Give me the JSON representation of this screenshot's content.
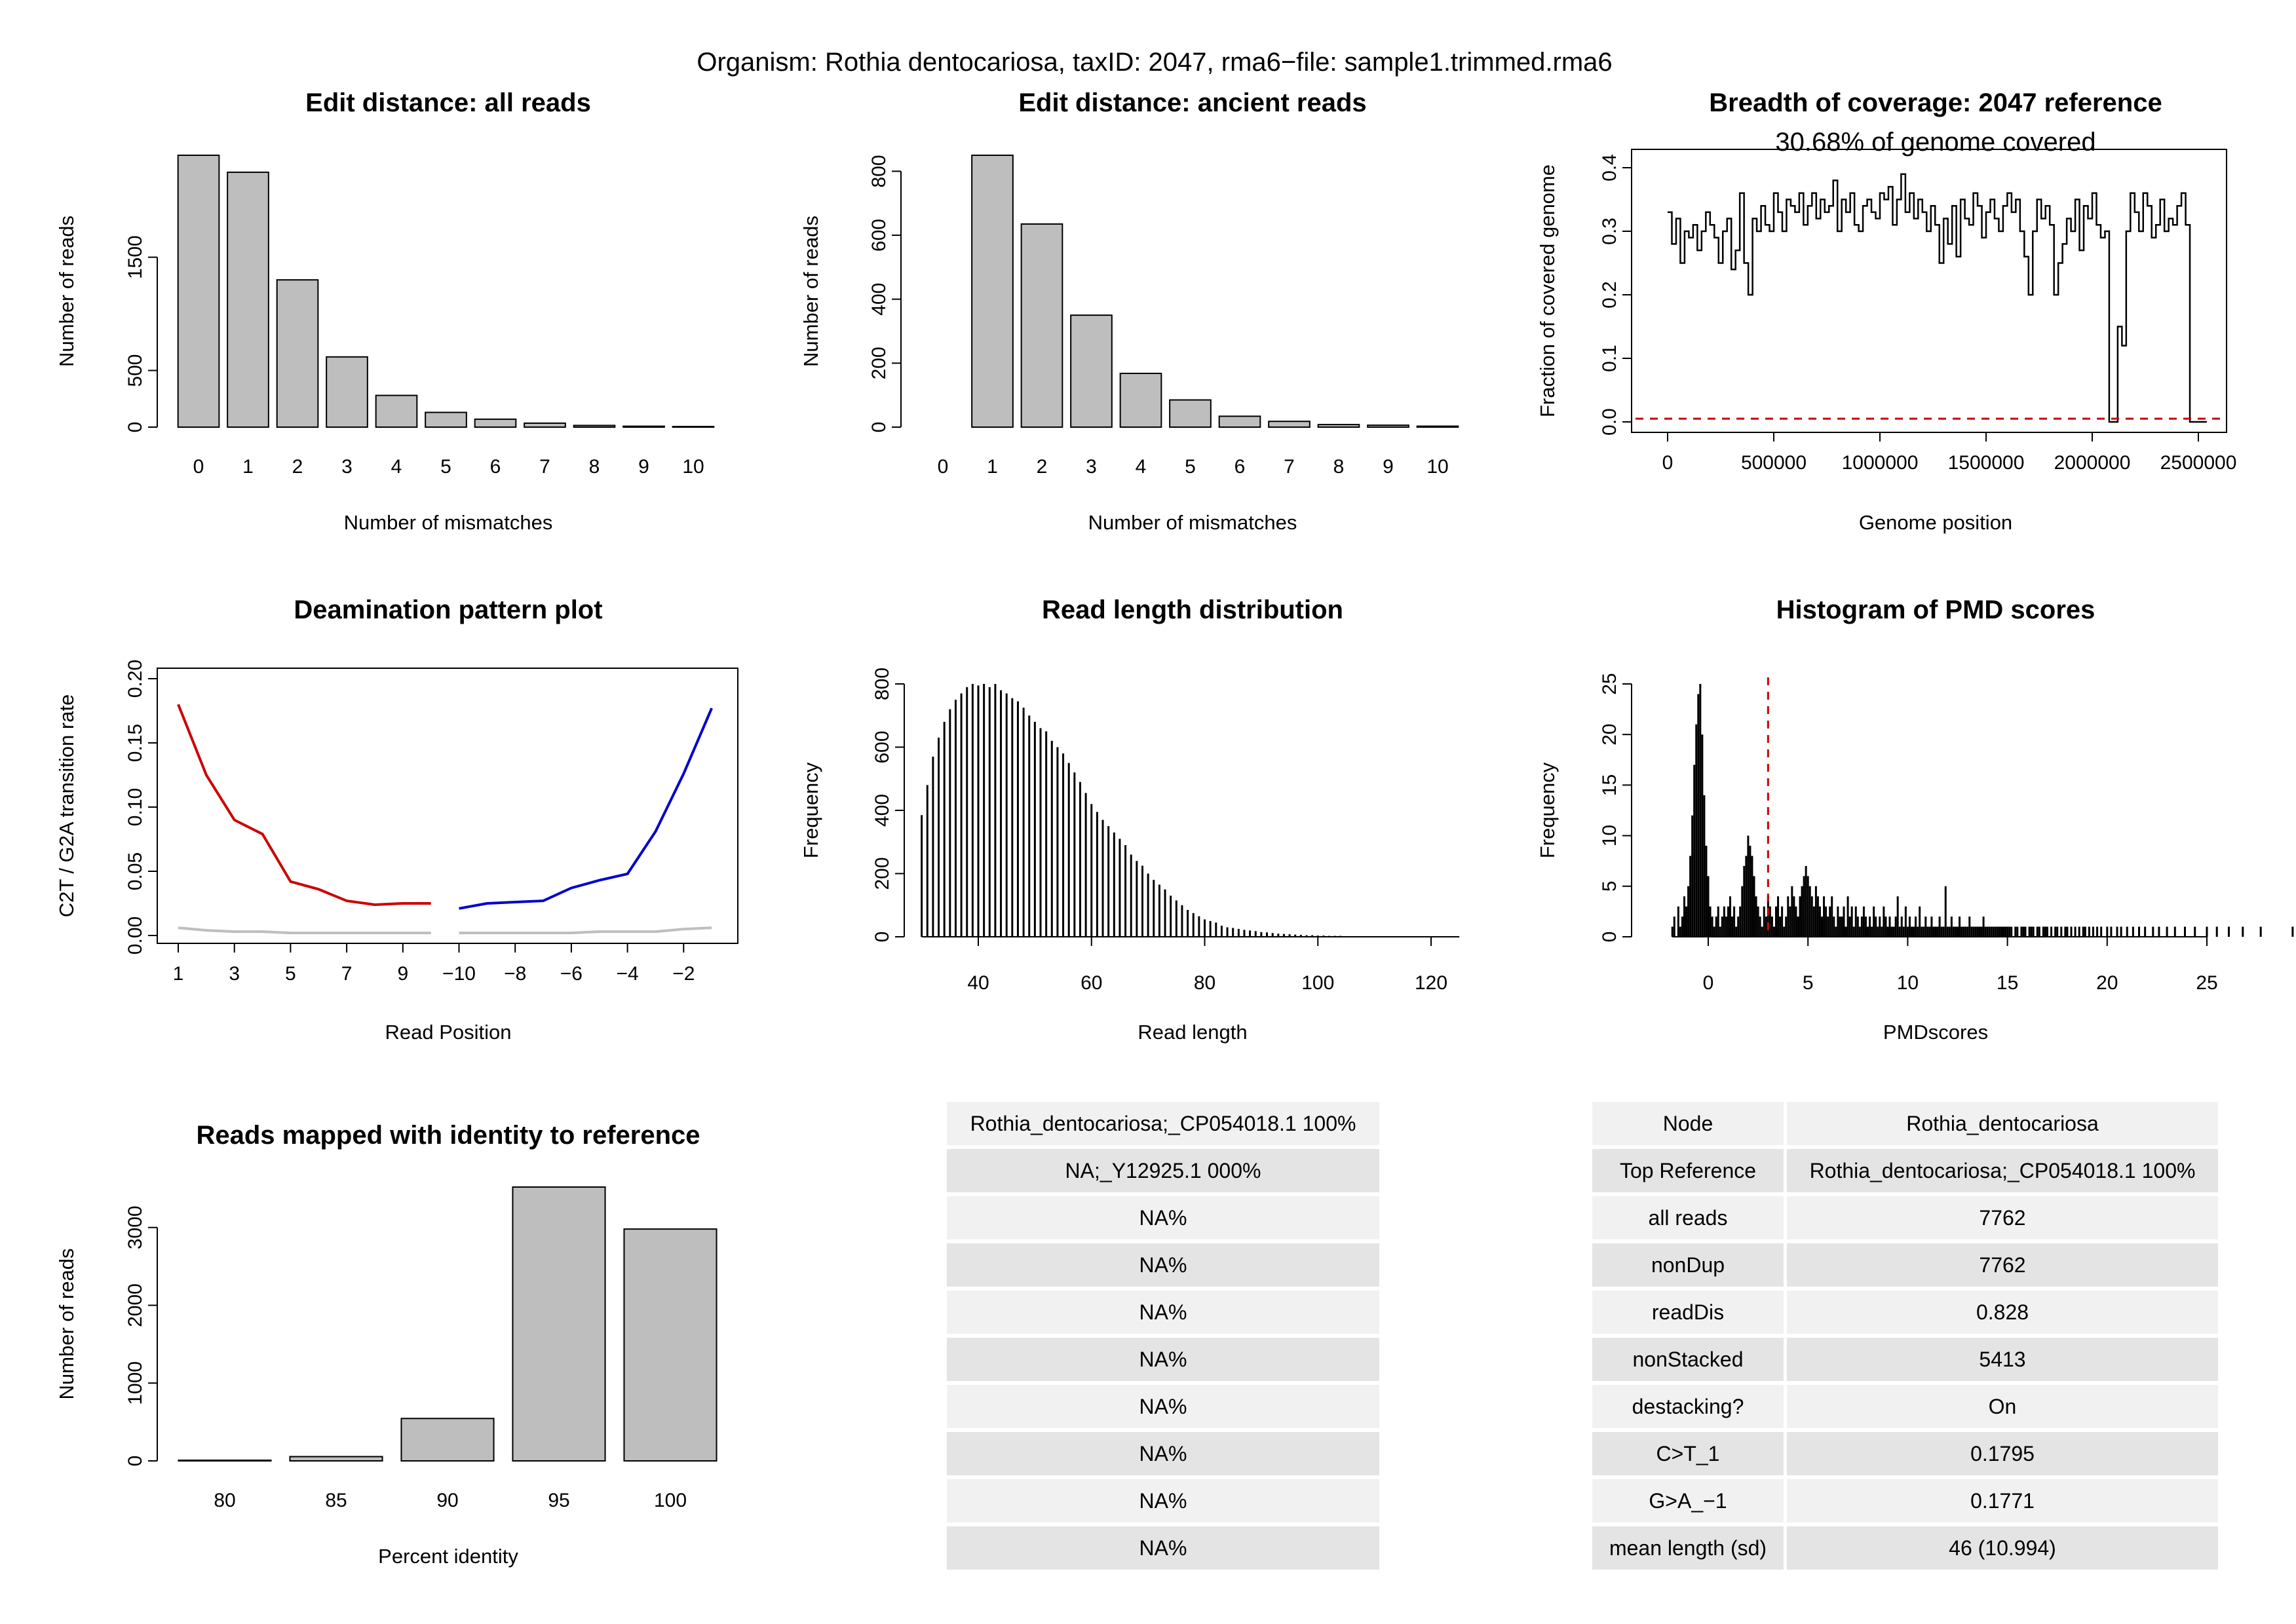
{
  "page_title": "Organism: Rothia dentocariosa, taxID: 2047, rma6−file: sample1.trimmed.rma6",
  "colors": {
    "bar_fill": "#bebebe",
    "red": "#cc0000",
    "blue": "#0000cc",
    "gray": "#bebebe",
    "dashed_red": "#cc0000"
  },
  "chart_data": [
    {
      "id": "edit-all",
      "type": "bar",
      "title": "Edit distance: all reads",
      "xlabel": "Number of mismatches",
      "ylabel": "Number of reads",
      "categories": [
        "0",
        "1",
        "2",
        "3",
        "4",
        "5",
        "6",
        "7",
        "8",
        "9",
        "10"
      ],
      "values": [
        2400,
        2250,
        1300,
        620,
        280,
        130,
        70,
        35,
        15,
        8,
        5
      ],
      "yticks": [
        0,
        500,
        1500
      ],
      "ylim": [
        0,
        2400
      ]
    },
    {
      "id": "edit-ancient",
      "type": "bar",
      "title": "Edit distance: ancient reads",
      "xlabel": "Number of mismatches",
      "ylabel": "Number of reads",
      "categories": [
        "0",
        "1",
        "2",
        "3",
        "4",
        "5",
        "6",
        "7",
        "8",
        "9",
        "10"
      ],
      "values": [
        0,
        850,
        635,
        350,
        168,
        85,
        34,
        18,
        8,
        6,
        3
      ],
      "yticks": [
        0,
        200,
        400,
        600,
        800
      ],
      "ylim": [
        0,
        850
      ]
    },
    {
      "id": "coverage",
      "type": "line",
      "title": "Breadth of coverage: 2047 reference",
      "subtitle": "30.68% of genome covered",
      "xlabel": "Genome position",
      "ylabel": "Fraction of covered genome",
      "xticks": [
        0,
        500000,
        1000000,
        1500000,
        2000000,
        2500000
      ],
      "xtick_labels": [
        "0",
        "500000",
        "1000000",
        "1500000",
        "2000000",
        "2500000"
      ],
      "yticks": [
        0.0,
        0.1,
        0.2,
        0.3,
        0.4
      ],
      "ytick_labels": [
        "0.0",
        "0.1",
        "0.2",
        "0.3",
        "0.4"
      ],
      "xlim": [
        0,
        2550000
      ],
      "ylim": [
        0,
        0.4
      ],
      "bin_width": 20000,
      "values": [
        0.33,
        0.28,
        0.32,
        0.25,
        0.3,
        0.29,
        0.31,
        0.27,
        0.3,
        0.33,
        0.31,
        0.29,
        0.25,
        0.3,
        0.32,
        0.24,
        0.27,
        0.36,
        0.25,
        0.2,
        0.32,
        0.3,
        0.34,
        0.31,
        0.3,
        0.36,
        0.33,
        0.3,
        0.35,
        0.34,
        0.33,
        0.36,
        0.31,
        0.34,
        0.36,
        0.32,
        0.35,
        0.33,
        0.34,
        0.38,
        0.3,
        0.35,
        0.33,
        0.36,
        0.31,
        0.3,
        0.34,
        0.35,
        0.33,
        0.32,
        0.36,
        0.35,
        0.37,
        0.31,
        0.35,
        0.39,
        0.33,
        0.36,
        0.32,
        0.35,
        0.33,
        0.3,
        0.34,
        0.31,
        0.25,
        0.32,
        0.28,
        0.34,
        0.26,
        0.35,
        0.32,
        0.31,
        0.36,
        0.34,
        0.29,
        0.33,
        0.35,
        0.32,
        0.3,
        0.34,
        0.36,
        0.33,
        0.35,
        0.3,
        0.26,
        0.2,
        0.3,
        0.35,
        0.32,
        0.34,
        0.31,
        0.2,
        0.25,
        0.28,
        0.32,
        0.3,
        0.35,
        0.27,
        0.34,
        0.32,
        0.36,
        0.31,
        0.29,
        0.3,
        0.0,
        0.0,
        0.15,
        0.12,
        0.3,
        0.36,
        0.33,
        0.3,
        0.36,
        0.34,
        0.29,
        0.31,
        0.35,
        0.3,
        0.32,
        0.31,
        0.34,
        0.36,
        0.31,
        0.0,
        0.0,
        0.0,
        0.0
      ],
      "threshold": 0.005
    },
    {
      "id": "deamination",
      "type": "line",
      "title": "Deamination pattern plot",
      "xlabel": "Read Position",
      "ylabel": "C2T / G2A transition rate",
      "xtick_labels": [
        "1",
        "3",
        "5",
        "7",
        "9",
        "−10",
        "−8",
        "−6",
        "−4",
        "−2"
      ],
      "yticks": [
        0.0,
        0.05,
        0.1,
        0.15,
        0.2
      ],
      "ytick_labels": [
        "0.00",
        "0.05",
        "0.10",
        "0.15",
        "0.20"
      ],
      "ylim": [
        0,
        0.2
      ],
      "series": [
        {
          "color": "#cc0000",
          "x": [
            1,
            2,
            3,
            4,
            5,
            6,
            7,
            8,
            9,
            10
          ],
          "y": [
            0.18,
            0.125,
            0.09,
            0.079,
            0.042,
            0.036,
            0.027,
            0.024,
            0.025,
            0.025
          ]
        },
        {
          "color": "#0000cc",
          "x": [
            11,
            12,
            13,
            14,
            15,
            16,
            17,
            18,
            19,
            20
          ],
          "y": [
            0.021,
            0.025,
            0.026,
            0.027,
            0.037,
            0.043,
            0.048,
            0.081,
            0.126,
            0.177
          ]
        },
        {
          "color": "#bebebe",
          "x": [
            1,
            2,
            3,
            4,
            5,
            6,
            7,
            8,
            9,
            10
          ],
          "y": [
            0.006,
            0.004,
            0.003,
            0.003,
            0.002,
            0.002,
            0.002,
            0.002,
            0.002,
            0.002
          ]
        },
        {
          "color": "#bebebe",
          "x": [
            11,
            12,
            13,
            14,
            15,
            16,
            17,
            18,
            19,
            20
          ],
          "y": [
            0.002,
            0.002,
            0.002,
            0.002,
            0.002,
            0.003,
            0.003,
            0.003,
            0.005,
            0.006
          ]
        }
      ]
    },
    {
      "id": "read-length",
      "type": "bar",
      "title": "Read length distribution",
      "xlabel": "Read length",
      "ylabel": "Frequency",
      "xticks": [
        40,
        60,
        80,
        100,
        120
      ],
      "xlim": [
        29.5,
        125
      ],
      "yticks": [
        0,
        200,
        400,
        600,
        800
      ],
      "ylim": [
        0,
        800
      ],
      "x_start": 30,
      "values": [
        385,
        480,
        570,
        630,
        680,
        720,
        750,
        770,
        790,
        800,
        795,
        800,
        790,
        800,
        780,
        770,
        755,
        745,
        725,
        700,
        680,
        660,
        650,
        620,
        600,
        580,
        550,
        520,
        490,
        455,
        420,
        395,
        370,
        350,
        330,
        310,
        290,
        260,
        240,
        225,
        200,
        180,
        165,
        150,
        130,
        115,
        100,
        85,
        75,
        65,
        55,
        50,
        45,
        35,
        30,
        28,
        25,
        22,
        20,
        18,
        15,
        14,
        12,
        10,
        9,
        8,
        7,
        6,
        5,
        5,
        4,
        4,
        3,
        3,
        3,
        2,
        2,
        2,
        2,
        1,
        1,
        1,
        1,
        1,
        1,
        1,
        1,
        1,
        1,
        1,
        1,
        1,
        1,
        1,
        1
      ]
    },
    {
      "id": "pmd",
      "type": "bar",
      "title": "Histogram of PMD scores",
      "xlabel": "PMDscores",
      "ylabel": "Frequency",
      "xticks": [
        0,
        5,
        10,
        15,
        20,
        25
      ],
      "xlim": [
        -1.8,
        25
      ],
      "yticks": [
        0,
        5,
        10,
        15,
        20,
        25
      ],
      "ylim": [
        0,
        25
      ],
      "threshold": 3,
      "x_start": -1.8,
      "bin_width": 0.1,
      "values": [
        1,
        2,
        0,
        3,
        1,
        2,
        4,
        3,
        5,
        8,
        12,
        17,
        21,
        24,
        25,
        20,
        14,
        9,
        6,
        3,
        2,
        1,
        2,
        3,
        1,
        2,
        3,
        2,
        3,
        4,
        2,
        3,
        1,
        2,
        3,
        5,
        7,
        8,
        10,
        9,
        8,
        6,
        4,
        3,
        2,
        1,
        3,
        2,
        4,
        3,
        2,
        1,
        3,
        4,
        2,
        3,
        1,
        2,
        4,
        3,
        5,
        4,
        3,
        2,
        4,
        5,
        6,
        7,
        6,
        5,
        4,
        3,
        5,
        4,
        3,
        2,
        4,
        3,
        2,
        3,
        4,
        2,
        1,
        3,
        2,
        2,
        3,
        1,
        4,
        2,
        3,
        1,
        3,
        2,
        1,
        2,
        3,
        2,
        1,
        2,
        1,
        3,
        2,
        1,
        2,
        1,
        3,
        2,
        1,
        2,
        1,
        1,
        2,
        4,
        1,
        2,
        1,
        3,
        1,
        2,
        1,
        1,
        2,
        1,
        3,
        1,
        1,
        2,
        1,
        1,
        2,
        1,
        1,
        1,
        2,
        1,
        1,
        5,
        1,
        1,
        2,
        1,
        1,
        1,
        2,
        1,
        1,
        1,
        1,
        2,
        1,
        1,
        1,
        1,
        1,
        1,
        2,
        1,
        1,
        1,
        1,
        1,
        1,
        1,
        1,
        1,
        1,
        1,
        1,
        1,
        1,
        0,
        1,
        1,
        0,
        1,
        1,
        1,
        0,
        1,
        1,
        1,
        0,
        1,
        1,
        0,
        1,
        1,
        1,
        0,
        1,
        0,
        1,
        1,
        0,
        1,
        0,
        1,
        1,
        0,
        1,
        0,
        1,
        0,
        1,
        0,
        1,
        1,
        0,
        1,
        0,
        1,
        0,
        1,
        0,
        1,
        0,
        0,
        1,
        0,
        1,
        0,
        0,
        1,
        0,
        1,
        0,
        0,
        1,
        0,
        0,
        1,
        0,
        0,
        1,
        0,
        0,
        1,
        0,
        0,
        0,
        1,
        0,
        0,
        1,
        0,
        0,
        0,
        1,
        0,
        0,
        0,
        1,
        0,
        0,
        0,
        0,
        1,
        0,
        0,
        0,
        0,
        1,
        0,
        0,
        0,
        0,
        0,
        1,
        0,
        0,
        0,
        0,
        1,
        0,
        0,
        0,
        0,
        0,
        1,
        0,
        0,
        0,
        0,
        0,
        0,
        1,
        0,
        0,
        0,
        0,
        0,
        0,
        0,
        0,
        1,
        0,
        0,
        0,
        0,
        0,
        0,
        0,
        0,
        0,
        0,
        0,
        0,
        0,
        0,
        0,
        1,
        0,
        0,
        0,
        0,
        0,
        0,
        0,
        0,
        0,
        0,
        0,
        0,
        0,
        0,
        0,
        0,
        0,
        0,
        0,
        0,
        0,
        0,
        0,
        0,
        0,
        0,
        0,
        0,
        0,
        0,
        0,
        0,
        0,
        0,
        0,
        1,
        0,
        0,
        0,
        0,
        0,
        0,
        0,
        0,
        0,
        0,
        0,
        0,
        0,
        0,
        0,
        0,
        0,
        0,
        1,
        0,
        0,
        0,
        0,
        0,
        0,
        0,
        0,
        0,
        0,
        0,
        0,
        1,
        0,
        0,
        0,
        0,
        0,
        0,
        0,
        0,
        0,
        0,
        0,
        0,
        0,
        0,
        0,
        0,
        0,
        0,
        0,
        0,
        0,
        0,
        0,
        0,
        0,
        0,
        0,
        1,
        0,
        0,
        0,
        0,
        0,
        0,
        0,
        0,
        0,
        0,
        0,
        0,
        0,
        0,
        0,
        0,
        1,
        0,
        0,
        0,
        0,
        0,
        0,
        0,
        0,
        0,
        0,
        0,
        0,
        0,
        0,
        0,
        0,
        0,
        0,
        0,
        0,
        0,
        0,
        0,
        0,
        1,
        0,
        0,
        0,
        0,
        0,
        0,
        0,
        0,
        0,
        1,
        0,
        0,
        0,
        0,
        0,
        0,
        0,
        0,
        0,
        0,
        0,
        0,
        1
      ]
    },
    {
      "id": "identity",
      "type": "bar",
      "title": "Reads mapped with identity to reference",
      "xlabel": "Percent identity",
      "ylabel": "Number of reads",
      "categories": [
        "80",
        "85",
        "90",
        "95",
        "100"
      ],
      "values": [
        8,
        55,
        545,
        3520,
        2980
      ],
      "yticks": [
        0,
        1000,
        2000,
        3000
      ],
      "ylim": [
        0,
        3520
      ]
    }
  ],
  "table_mid": {
    "rows": [
      "Rothia_dentocariosa;_CP054018.1 100%",
      "NA;_Y12925.1 000%",
      "NA%",
      "NA%",
      "NA%",
      "NA%",
      "NA%",
      "NA%",
      "NA%",
      "NA%"
    ]
  },
  "table_right": {
    "rows": [
      {
        "key": "Node",
        "value": "Rothia_dentocariosa"
      },
      {
        "key": "Top Reference",
        "value": "Rothia_dentocariosa;_CP054018.1 100%"
      },
      {
        "key": "all reads",
        "value": "7762"
      },
      {
        "key": "nonDup",
        "value": "7762"
      },
      {
        "key": "readDis",
        "value": "0.828"
      },
      {
        "key": "nonStacked",
        "value": "5413"
      },
      {
        "key": "destacking?",
        "value": "On"
      },
      {
        "key": "C>T_1",
        "value": "0.1795"
      },
      {
        "key": "G>A_−1",
        "value": "0.1771"
      },
      {
        "key": "mean length (sd)",
        "value": "46 (10.994)"
      }
    ]
  }
}
